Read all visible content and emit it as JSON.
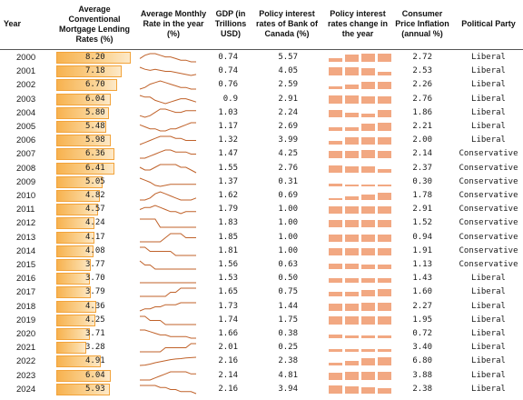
{
  "headers": {
    "year": "Year",
    "mortgage": "Average Conventional Mortgage Lending Rates (%)",
    "monthly": "Average Monthly Rate in the year (%)",
    "gdp": "GDP (in Trillions USD)",
    "policy": "Policy interest rates of Bank of Canada  (%)",
    "policy_change": "Policy interest rates change in the year",
    "cpi": "Consumer Price Inflation (annual %)",
    "party": "Political Party"
  },
  "colors": {
    "bar": "#f7b24f",
    "spark": "#c0622a",
    "block": "#f2a882"
  },
  "rows": [
    {
      "year": "2000",
      "mortgage": "8.20",
      "gdp": "0.74",
      "policy": "5.57",
      "cpi": "2.72",
      "party": "Liberal",
      "spark": [
        8.1,
        8.3,
        8.4,
        8.4,
        8.3,
        8.2,
        8.2,
        8.1,
        8.0,
        8.0,
        7.9,
        7.9
      ],
      "change": [
        0.4,
        0.8,
        0.9,
        0.9
      ]
    },
    {
      "year": "2001",
      "mortgage": "7.18",
      "gdp": "0.74",
      "policy": "4.05",
      "cpi": "2.53",
      "party": "Liberal",
      "spark": [
        7.6,
        7.4,
        7.3,
        7.4,
        7.3,
        7.2,
        7.2,
        7.1,
        7.0,
        6.9,
        6.8,
        6.9
      ],
      "change": [
        0.9,
        0.9,
        0.8,
        0.4
      ]
    },
    {
      "year": "2002",
      "mortgage": "6.70",
      "gdp": "0.76",
      "policy": "2.59",
      "cpi": "2.26",
      "party": "Liberal",
      "spark": [
        6.5,
        6.6,
        6.8,
        6.9,
        7.0,
        6.9,
        6.8,
        6.7,
        6.6,
        6.6,
        6.5,
        6.5
      ],
      "change": [
        0.3,
        0.5,
        0.8,
        0.8
      ]
    },
    {
      "year": "2003",
      "mortgage": "6.04",
      "gdp": "0.9",
      "policy": "2.91",
      "cpi": "2.76",
      "party": "Liberal",
      "spark": [
        6.3,
        6.2,
        6.2,
        6.0,
        5.9,
        5.8,
        5.9,
        6.0,
        6.1,
        6.1,
        6.0,
        5.9
      ],
      "change": [
        0.9,
        0.9,
        0.8,
        0.8
      ]
    },
    {
      "year": "2004",
      "mortgage": "5.80",
      "gdp": "1.03",
      "policy": "2.24",
      "cpi": "1.86",
      "party": "Liberal",
      "spark": [
        5.6,
        5.5,
        5.6,
        5.8,
        6.0,
        6.0,
        5.9,
        5.8,
        5.8,
        5.9,
        5.9,
        5.9
      ],
      "change": [
        0.8,
        0.5,
        0.4,
        0.8
      ]
    },
    {
      "year": "2005",
      "mortgage": "5.48",
      "gdp": "1.17",
      "policy": "2.69",
      "cpi": "2.21",
      "party": "Liberal",
      "spark": [
        5.6,
        5.5,
        5.4,
        5.4,
        5.3,
        5.3,
        5.4,
        5.4,
        5.5,
        5.6,
        5.7,
        5.7
      ],
      "change": [
        0.4,
        0.4,
        0.8,
        0.9
      ]
    },
    {
      "year": "2006",
      "mortgage": "5.98",
      "gdp": "1.32",
      "policy": "3.99",
      "cpi": "2.00",
      "party": "Liberal",
      "spark": [
        5.7,
        5.8,
        5.9,
        6.0,
        6.1,
        6.1,
        6.1,
        6.0,
        6.0,
        5.9,
        5.9,
        5.9
      ],
      "change": [
        0.4,
        0.8,
        0.8,
        0.8
      ]
    },
    {
      "year": "2007",
      "mortgage": "6.36",
      "gdp": "1.47",
      "policy": "4.25",
      "cpi": "2.14",
      "party": "Conservative",
      "spark": [
        6.1,
        6.1,
        6.2,
        6.3,
        6.4,
        6.5,
        6.5,
        6.4,
        6.4,
        6.4,
        6.3,
        6.3
      ],
      "change": [
        0.8,
        0.8,
        0.9,
        0.8
      ]
    },
    {
      "year": "2008",
      "mortgage": "6.41",
      "gdp": "1.55",
      "policy": "2.76",
      "cpi": "2.37",
      "party": "Conservative",
      "spark": [
        6.4,
        6.3,
        6.3,
        6.4,
        6.5,
        6.5,
        6.5,
        6.5,
        6.4,
        6.4,
        6.3,
        6.2
      ],
      "change": [
        0.8,
        0.7,
        0.7,
        0.4
      ]
    },
    {
      "year": "2009",
      "mortgage": "5.05",
      "gdp": "1.37",
      "policy": "0.31",
      "cpi": "0.30",
      "party": "Conservative",
      "spark": [
        5.6,
        5.4,
        5.2,
        4.9,
        4.8,
        4.9,
        5.0,
        5.0,
        5.0,
        5.0,
        5.0,
        5.0
      ],
      "change": [
        0.3,
        0.2,
        0.2,
        0.2
      ]
    },
    {
      "year": "2010",
      "mortgage": "4.82",
      "gdp": "1.62",
      "policy": "0.69",
      "cpi": "1.78",
      "party": "Conservative",
      "spark": [
        4.7,
        4.7,
        4.8,
        5.0,
        5.1,
        5.0,
        4.9,
        4.8,
        4.7,
        4.7,
        4.7,
        4.8
      ],
      "change": [
        0.2,
        0.4,
        0.6,
        0.8
      ]
    },
    {
      "year": "2011",
      "mortgage": "4.57",
      "gdp": "1.79",
      "policy": "1.00",
      "cpi": "2.91",
      "party": "Conservative",
      "spark": [
        4.6,
        4.7,
        4.7,
        4.8,
        4.7,
        4.6,
        4.5,
        4.5,
        4.4,
        4.5,
        4.5,
        4.5
      ],
      "change": [
        0.8,
        0.8,
        0.8,
        0.8
      ]
    },
    {
      "year": "2012",
      "mortgage": "4.24",
      "gdp": "1.83",
      "policy": "1.00",
      "cpi": "1.52",
      "party": "Conservative",
      "spark": [
        4.3,
        4.3,
        4.3,
        4.3,
        4.2,
        4.2,
        4.2,
        4.2,
        4.2,
        4.2,
        4.2,
        4.2
      ],
      "change": [
        0.8,
        0.8,
        0.8,
        0.8
      ]
    },
    {
      "year": "2013",
      "mortgage": "4.17",
      "gdp": "1.85",
      "policy": "1.00",
      "cpi": "0.94",
      "party": "Conservative",
      "spark": [
        4.1,
        4.1,
        4.1,
        4.1,
        4.1,
        4.2,
        4.3,
        4.3,
        4.3,
        4.2,
        4.2,
        4.2
      ],
      "change": [
        0.8,
        0.8,
        0.8,
        0.8
      ]
    },
    {
      "year": "2014",
      "mortgage": "4.08",
      "gdp": "1.81",
      "policy": "1.00",
      "cpi": "1.91",
      "party": "Conservative",
      "spark": [
        4.2,
        4.2,
        4.1,
        4.1,
        4.1,
        4.1,
        4.1,
        4.0,
        4.0,
        4.0,
        4.0,
        4.0
      ],
      "change": [
        0.8,
        0.8,
        0.8,
        0.8
      ]
    },
    {
      "year": "2015",
      "mortgage": "3.77",
      "gdp": "1.56",
      "policy": "0.63",
      "cpi": "1.13",
      "party": "Conservative",
      "spark": [
        3.9,
        3.8,
        3.8,
        3.7,
        3.7,
        3.7,
        3.7,
        3.7,
        3.7,
        3.7,
        3.7,
        3.7
      ],
      "change": [
        0.6,
        0.6,
        0.5,
        0.5
      ]
    },
    {
      "year": "2016",
      "mortgage": "3.70",
      "gdp": "1.53",
      "policy": "0.50",
      "cpi": "1.43",
      "party": "Liberal",
      "spark": [
        3.7,
        3.7,
        3.7,
        3.7,
        3.7,
        3.7,
        3.7,
        3.7,
        3.7,
        3.7,
        3.7,
        3.7
      ],
      "change": [
        0.5,
        0.5,
        0.5,
        0.5
      ]
    },
    {
      "year": "2017",
      "mortgage": "3.79",
      "gdp": "1.65",
      "policy": "0.75",
      "cpi": "1.60",
      "party": "Liberal",
      "spark": [
        3.7,
        3.7,
        3.7,
        3.7,
        3.7,
        3.7,
        3.8,
        3.8,
        3.9,
        3.9,
        3.9,
        3.9
      ],
      "change": [
        0.5,
        0.5,
        0.7,
        0.8
      ]
    },
    {
      "year": "2018",
      "mortgage": "4.36",
      "gdp": "1.73",
      "policy": "1.44",
      "cpi": "2.27",
      "party": "Liberal",
      "spark": [
        4.1,
        4.2,
        4.2,
        4.3,
        4.3,
        4.4,
        4.4,
        4.4,
        4.5,
        4.5,
        4.5,
        4.5
      ],
      "change": [
        0.8,
        0.8,
        0.9,
        0.9
      ]
    },
    {
      "year": "2019",
      "mortgage": "4.25",
      "gdp": "1.74",
      "policy": "1.75",
      "cpi": "1.95",
      "party": "Liberal",
      "spark": [
        4.4,
        4.4,
        4.3,
        4.3,
        4.3,
        4.2,
        4.2,
        4.2,
        4.2,
        4.2,
        4.2,
        4.2
      ],
      "change": [
        0.9,
        0.9,
        0.9,
        0.9
      ]
    },
    {
      "year": "2020",
      "mortgage": "3.71",
      "gdp": "1.66",
      "policy": "0.38",
      "cpi": "0.72",
      "party": "Liberal",
      "spark": [
        4.0,
        4.0,
        3.9,
        3.8,
        3.7,
        3.7,
        3.6,
        3.6,
        3.6,
        3.6,
        3.5,
        3.5
      ],
      "change": [
        0.4,
        0.3,
        0.3,
        0.3
      ]
    },
    {
      "year": "2021",
      "mortgage": "3.28",
      "gdp": "2.01",
      "policy": "0.25",
      "cpi": "3.40",
      "party": "Liberal",
      "spark": [
        3.2,
        3.2,
        3.2,
        3.2,
        3.2,
        3.3,
        3.3,
        3.3,
        3.3,
        3.3,
        3.4,
        3.4
      ],
      "change": [
        0.3,
        0.3,
        0.3,
        0.3
      ]
    },
    {
      "year": "2022",
      "mortgage": "4.91",
      "gdp": "2.16",
      "policy": "2.38",
      "cpi": "6.80",
      "party": "Liberal",
      "spark": [
        3.5,
        3.6,
        3.9,
        4.3,
        4.6,
        4.9,
        5.2,
        5.4,
        5.5,
        5.7,
        5.8,
        5.9
      ],
      "change": [
        0.3,
        0.5,
        0.8,
        0.9
      ]
    },
    {
      "year": "2023",
      "mortgage": "6.04",
      "gdp": "2.14",
      "policy": "4.81",
      "cpi": "3.88",
      "party": "Liberal",
      "spark": [
        5.8,
        5.8,
        5.8,
        5.9,
        6.0,
        6.1,
        6.2,
        6.2,
        6.2,
        6.2,
        6.1,
        6.1
      ],
      "change": [
        0.8,
        0.9,
        0.9,
        0.9
      ]
    },
    {
      "year": "2024",
      "mortgage": "5.93",
      "gdp": "2.16",
      "policy": "3.94",
      "cpi": "2.38",
      "party": "Liberal",
      "spark": [
        6.1,
        6.1,
        6.1,
        6.1,
        6.0,
        6.0,
        5.9,
        5.9,
        5.8,
        5.8,
        5.8,
        5.7
      ],
      "change": [
        0.9,
        0.8,
        0.7,
        0.6
      ]
    }
  ]
}
